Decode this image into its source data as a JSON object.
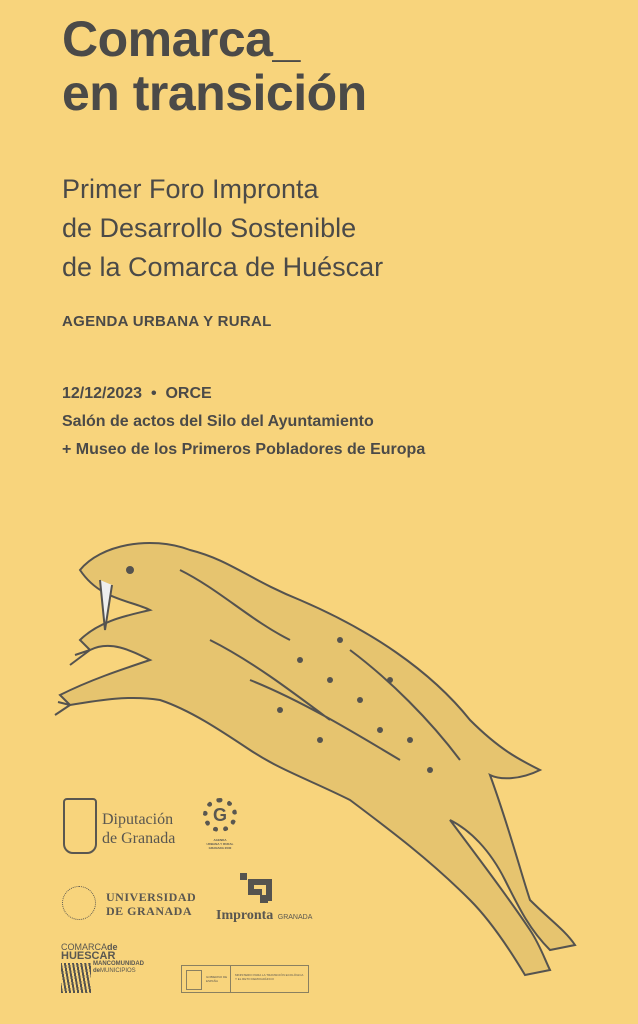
{
  "title": {
    "line1": "Comarca_",
    "line2": "en transición"
  },
  "subtitle": {
    "line1": "Primer Foro Impronta",
    "line2": "de Desarrollo Sostenible",
    "line3": "de la Comarca de Huéscar"
  },
  "agenda": "AGENDA URBANA Y RURAL",
  "event": {
    "date": "12/12/2023",
    "separator": "•",
    "place": "ORCE",
    "venue1": "Salón de actos del Silo del Ayuntamiento",
    "venue2": "+ Museo de los Primeros Pobladores de Europa"
  },
  "logos": {
    "diputacion": {
      "line1": "Diputación",
      "line2": "de Granada"
    },
    "agenda_urbana": {
      "letter": "G",
      "line1": "AGENDA",
      "line2": "URBANA Y RURAL",
      "line3": "GRANADA 2030"
    },
    "universidad": {
      "line1": "UNIVERSIDAD",
      "line2": "DE GRANADA"
    },
    "impronta": {
      "name": "Impronta",
      "city": "GRANADA"
    },
    "comarca": {
      "line1a": "COMARCA",
      "line1b": "de",
      "line2": "HUESCAR",
      "line3": "MANCOMUNIDAD",
      "line4a": "de",
      "line4b": "MUNICIPIOS"
    },
    "gobierno": {
      "gov": "GOBIERNO DE ESPAÑA",
      "ministry": "MINISTERIO PARA LA TRANSICIÓN ECOLÓGICA Y EL RETO DEMOGRÁFICO"
    }
  },
  "colors": {
    "background": "#F8D47C",
    "text": "#4b4a48"
  }
}
